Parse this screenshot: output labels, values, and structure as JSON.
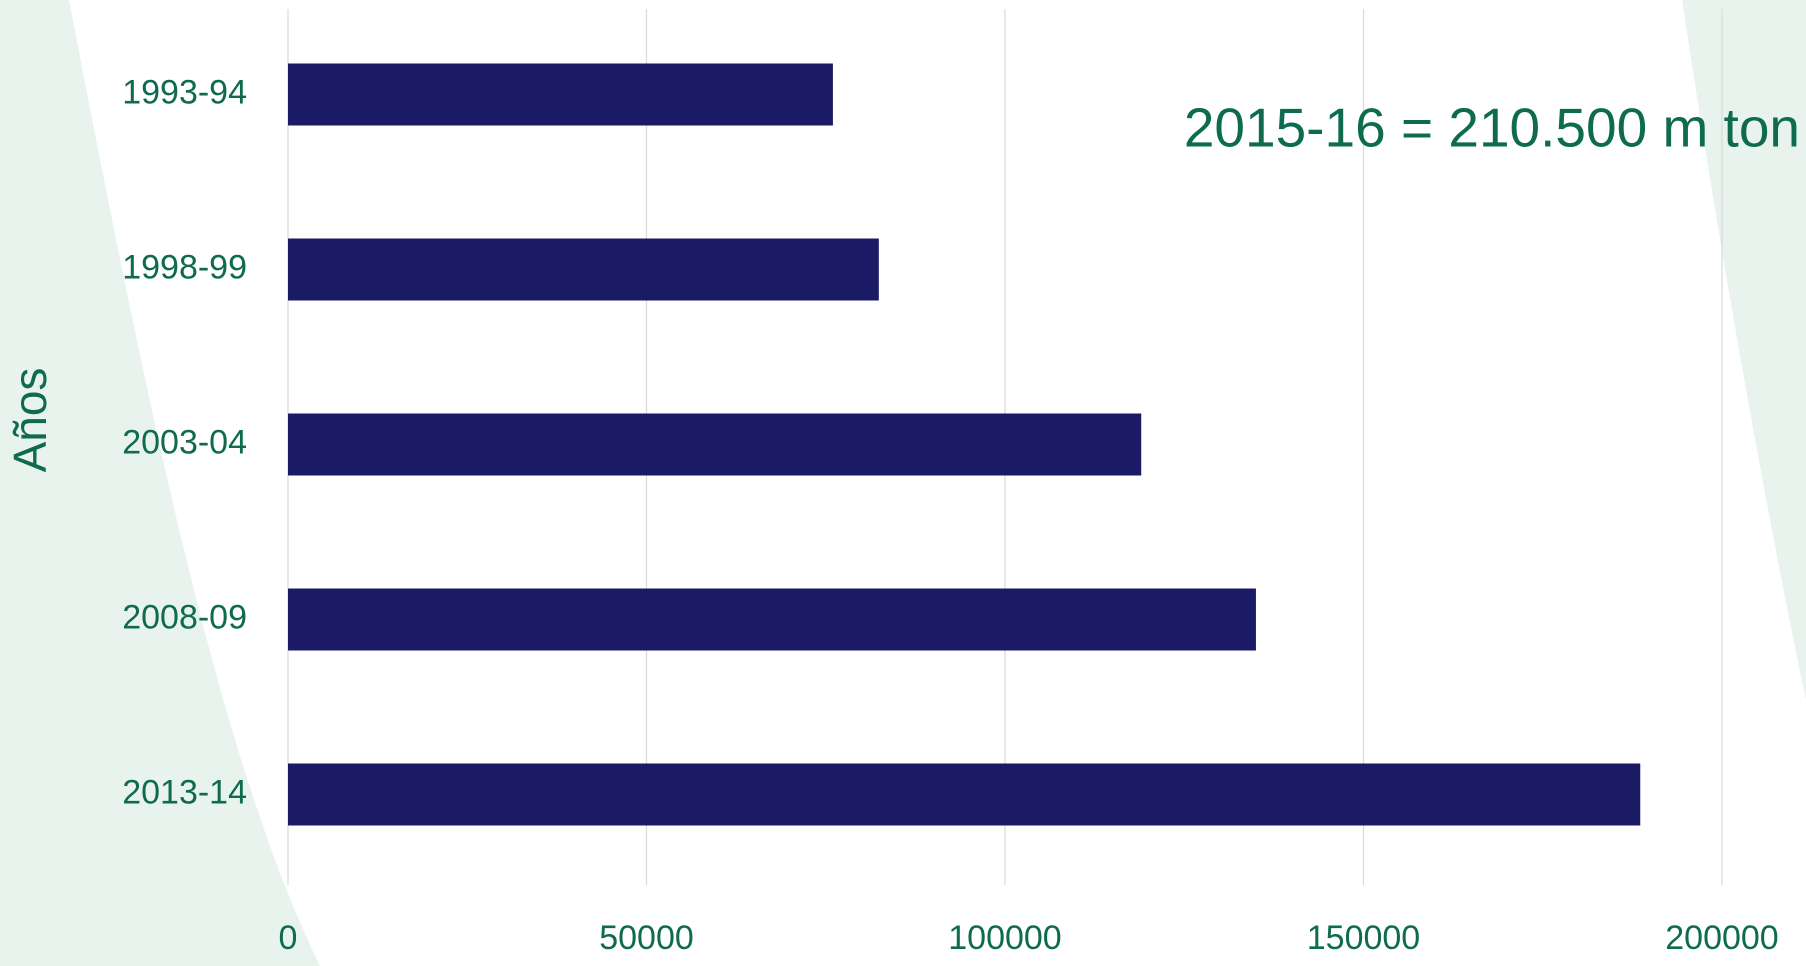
{
  "chart_data": {
    "type": "barh",
    "ylabel": "Años",
    "annotation": "2015-16 = 210.500 m ton",
    "categories": [
      "1993-94",
      "1998-99",
      "2003-04",
      "2008-09",
      "2013-14"
    ],
    "values": [
      76000,
      82400,
      119000,
      135000,
      188600
    ],
    "color": "#1b1a64",
    "xlim": [
      0,
      200000
    ],
    "xticks": [
      0,
      50000,
      100000,
      150000,
      200000
    ],
    "grid": true
  }
}
